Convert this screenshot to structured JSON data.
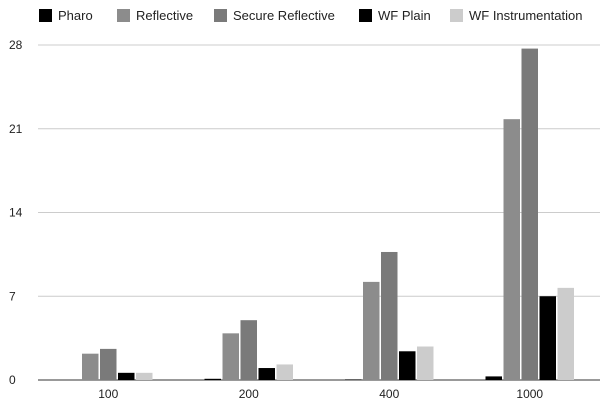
{
  "chart_data": {
    "type": "bar",
    "title": "",
    "xlabel": "",
    "ylabel": "",
    "categories": [
      "100",
      "200",
      "400",
      "1000"
    ],
    "ylim": [
      0,
      28
    ],
    "yticks": [
      "0",
      "7",
      "14",
      "21",
      "28"
    ],
    "grid": true,
    "legend_position": "top",
    "series": [
      {
        "name": "Pharo",
        "color": "#000000",
        "values": [
          0.0,
          0.1,
          0.05,
          0.3
        ]
      },
      {
        "name": "Reflective",
        "color": "#8c8c8c",
        "values": [
          2.2,
          3.9,
          8.2,
          21.8
        ]
      },
      {
        "name": "Secure Reflective",
        "color": "#7a7a7a",
        "values": [
          2.6,
          5.0,
          10.7,
          27.7
        ]
      },
      {
        "name": "WF Plain",
        "color": "#000000",
        "values": [
          0.6,
          1.0,
          2.4,
          7.0
        ]
      },
      {
        "name": "WF Instrumentation",
        "color": "#cccccc",
        "values": [
          0.6,
          1.3,
          2.8,
          7.7
        ]
      }
    ]
  }
}
